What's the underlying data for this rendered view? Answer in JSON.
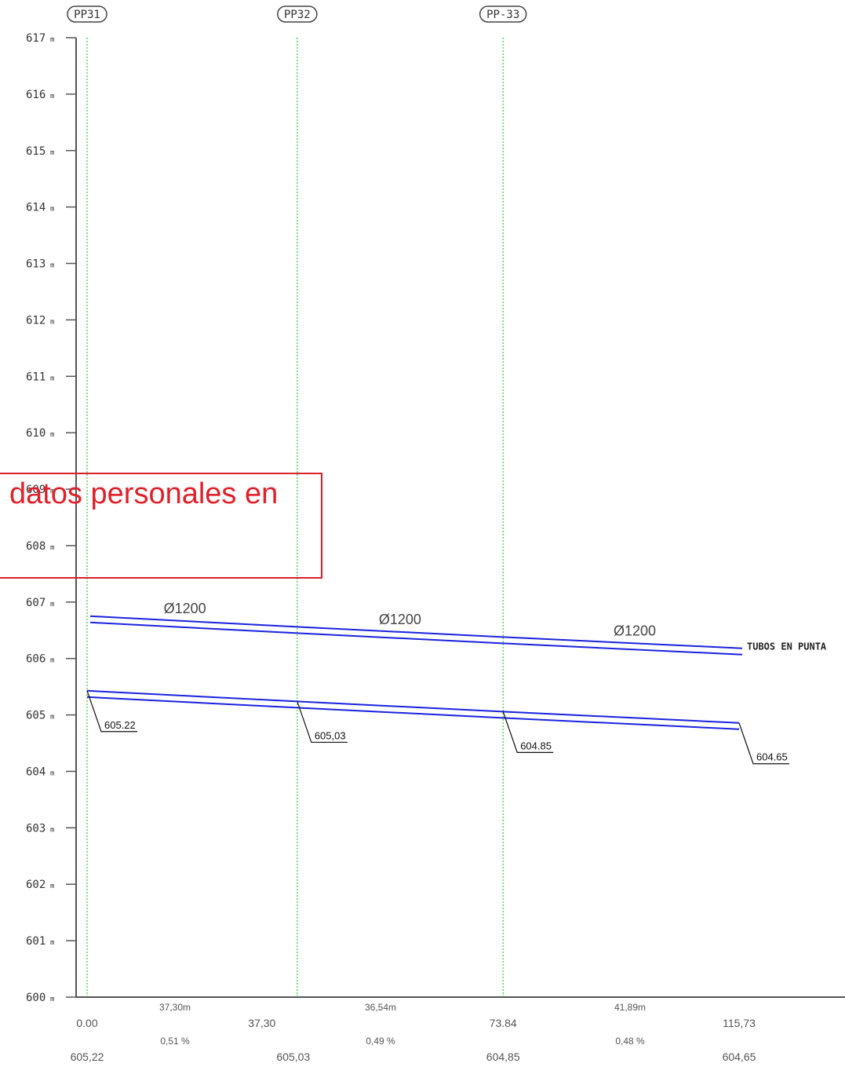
{
  "chart_data": {
    "type": "line",
    "y_axis": {
      "unit": "m",
      "ticks": [
        617,
        616,
        615,
        614,
        613,
        612,
        611,
        610,
        609,
        608,
        607,
        606,
        605,
        604,
        603,
        602,
        601,
        600
      ],
      "ylim": [
        600,
        617
      ]
    },
    "xlim": [
      0,
      115.73
    ],
    "nodes": [
      {
        "tag": "PP31",
        "chainage": 0.0
      },
      {
        "tag": "PP32",
        "chainage": 37.3
      },
      {
        "tag": "PP-33",
        "chainage": 73.84
      }
    ],
    "pipe": {
      "x": [
        0.0,
        37.3,
        73.84,
        115.73
      ],
      "invert": [
        605.22,
        605.03,
        604.85,
        604.65
      ],
      "invert_labels": [
        "605.22",
        "605,03",
        "604.85",
        "604.65"
      ],
      "diameter_labels": [
        "Ø1200",
        "Ø1200",
        "Ø1200"
      ],
      "note": "TUBOS EN PUNTA"
    },
    "table": {
      "segment_lengths": [
        "37,30m",
        "36,54m",
        "41,89m"
      ],
      "chainages": [
        "0.00",
        "37,30",
        "73.84",
        "115,73"
      ],
      "slopes": [
        "0,51 %",
        "0,49 %",
        "0,48 %"
      ],
      "elevations": [
        "605,22",
        "605,03",
        "604,85",
        "604,65"
      ]
    }
  },
  "redaction": {
    "text": "datos personales en"
  },
  "colors": {
    "pipe": "#1a22e0",
    "gridline": "#35c93a",
    "axis": "#555555",
    "redaction": "#d8202a"
  }
}
